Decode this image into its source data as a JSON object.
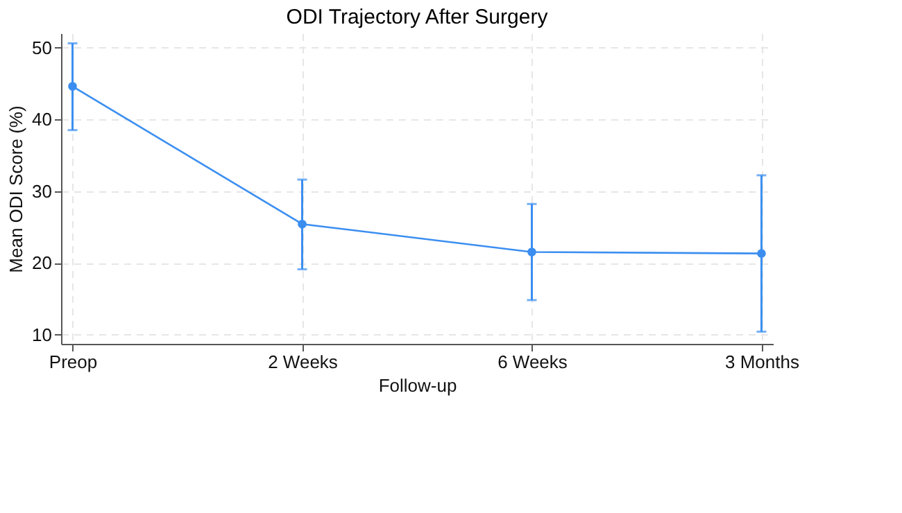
{
  "chart_data": {
    "type": "line",
    "title": "ODI Trajectory After Surgery",
    "xlabel": "Follow-up",
    "ylabel": "Mean ODI Score (%)",
    "categories": [
      "Preop",
      "2 Weeks",
      "6 Weeks",
      "3 Months"
    ],
    "series": [
      {
        "color": "#3b8ef0",
        "values": [
          44.6,
          25.4,
          21.5,
          21.3
        ],
        "errors": [
          [
            38.5,
            50.6
          ],
          [
            19.1,
            31.6
          ],
          [
            14.8,
            28.2
          ],
          [
            10.4,
            32.2
          ]
        ]
      }
    ],
    "ylim": [
      8.7,
      52
    ],
    "yticks": [
      10,
      20,
      30,
      40,
      50
    ],
    "grid": true,
    "marker": "circle",
    "line_style": "solid"
  }
}
